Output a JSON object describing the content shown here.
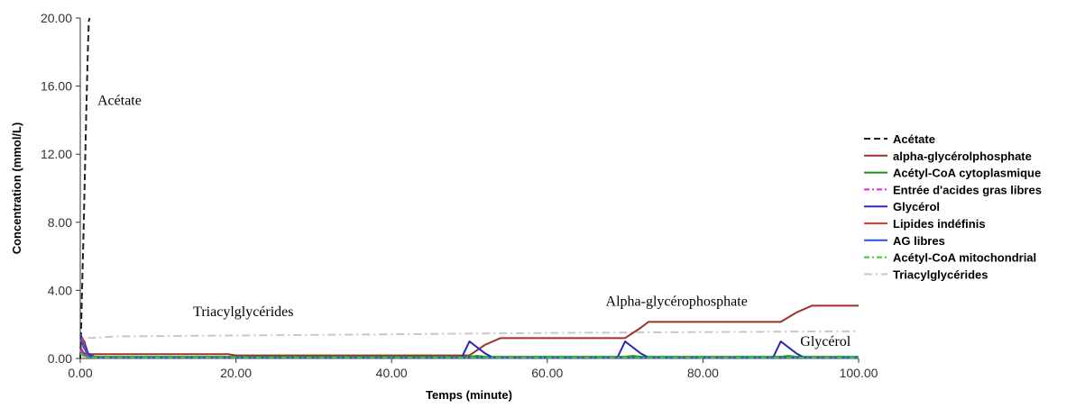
{
  "chart_data": {
    "type": "line",
    "title": "",
    "xlabel": "Temps (minute)",
    "ylabel": "Concentration (mmol/L)",
    "xlim": [
      0,
      100
    ],
    "ylim": [
      0,
      20
    ],
    "xticks": [
      "0.00",
      "20.00",
      "40.00",
      "60.00",
      "80.00",
      "100.00"
    ],
    "yticks": [
      "0.00",
      "4.00",
      "8.00",
      "12.00",
      "16.00",
      "20.00"
    ],
    "grid": false,
    "legend_position": "right",
    "annotations": [
      {
        "text": "Acétate",
        "x": 2.2,
        "y": 14.9
      },
      {
        "text": "Triacylglycérides",
        "x": 14.5,
        "y": 2.5
      },
      {
        "text": "Alpha-glycérophosphate",
        "x": 67.5,
        "y": 3.1
      },
      {
        "text": "Glycérol",
        "x": 92.5,
        "y": 0.75
      }
    ],
    "series": [
      {
        "name": "Acétate",
        "color": "#222222",
        "dash": "7,4",
        "x": [
          0,
          0.1,
          0.2,
          0.4,
          0.6,
          0.8,
          1.0,
          1.1,
          1.2
        ],
        "y": [
          0,
          1.5,
          3.5,
          7,
          11,
          15,
          18.5,
          19.8,
          20
        ]
      },
      {
        "name": "alpha-glycérolphosphate",
        "color": "#a0302c",
        "dash": "",
        "x": [
          0,
          0.5,
          1,
          10,
          19,
          20,
          30,
          40,
          50,
          52,
          54,
          60,
          70,
          72,
          73,
          80,
          90,
          92,
          94,
          95,
          100
        ],
        "y": [
          0.6,
          0.3,
          0.25,
          0.25,
          0.25,
          0.18,
          0.18,
          0.18,
          0.18,
          0.8,
          1.2,
          1.2,
          1.2,
          1.8,
          2.15,
          2.15,
          2.15,
          2.7,
          3.1,
          3.1,
          3.1
        ]
      },
      {
        "name": "Acétyl-CoA cytoplasmique",
        "color": "#1f8f1f",
        "dash": "",
        "x": [
          0,
          0.5,
          1,
          50,
          51,
          52,
          70,
          71,
          72,
          90,
          91,
          92,
          100
        ],
        "y": [
          0.4,
          0.2,
          0.1,
          0.1,
          0.15,
          0.1,
          0.1,
          0.15,
          0.1,
          0.1,
          0.15,
          0.1,
          0.1
        ]
      },
      {
        "name": "Entrée d'acides gras libres",
        "color": "#e020e0",
        "dash": "6,3,2,3",
        "x": [
          0,
          0.5,
          1,
          100
        ],
        "y": [
          0.5,
          0.2,
          0.05,
          0.05
        ]
      },
      {
        "name": "Glycérol",
        "color": "#2a2ab0",
        "dash": "",
        "x": [
          0,
          0.5,
          1,
          2,
          49,
          50,
          52,
          53,
          69,
          70,
          72,
          73,
          89,
          90,
          92,
          93,
          100
        ],
        "y": [
          1.4,
          1.0,
          0.3,
          0.05,
          0.05,
          1.0,
          0.3,
          0.05,
          0.05,
          1.0,
          0.3,
          0.05,
          0.05,
          1.0,
          0.3,
          0.05,
          0.05
        ]
      },
      {
        "name": "Lipides indéfinis",
        "color": "#e53b2c",
        "dash": "",
        "x": [
          0,
          0.3,
          0.6,
          1,
          2,
          100
        ],
        "y": [
          1.0,
          1.2,
          0.6,
          0.2,
          0.05,
          0.05
        ]
      },
      {
        "name": "AG libres",
        "color": "#2b4fe0",
        "dash": "",
        "x": [
          0,
          0.5,
          1,
          2,
          100
        ],
        "y": [
          1.2,
          0.6,
          0.2,
          0.03,
          0.03
        ]
      },
      {
        "name": "Acétyl-CoA mitochondrial",
        "color": "#33cc33",
        "dash": "6,3,2,3",
        "x": [
          0,
          0.5,
          1,
          100
        ],
        "y": [
          0.3,
          0.12,
          0.06,
          0.06
        ]
      },
      {
        "name": "Triacylglycérides",
        "color": "#c8c8c8",
        "dash": "9,4,2,4",
        "x": [
          0,
          0.5,
          1,
          5,
          20,
          40,
          60,
          80,
          100
        ],
        "y": [
          0.3,
          0.9,
          1.2,
          1.3,
          1.35,
          1.42,
          1.5,
          1.55,
          1.6
        ]
      }
    ]
  }
}
